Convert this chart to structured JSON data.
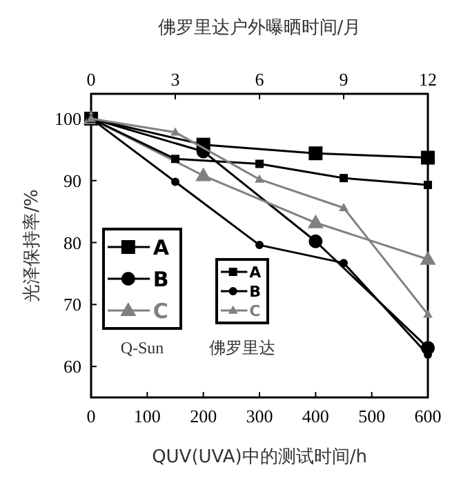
{
  "chart_data": {
    "type": "line",
    "title": "佛罗里达户外曝晒时间/月",
    "xlabel": "QUV(UVA)中的测试时间/h",
    "ylabel": "光泽保持率/%",
    "xlim": [
      0,
      600
    ],
    "xticks": [
      0,
      100,
      200,
      300,
      400,
      500,
      600
    ],
    "x2lim": [
      0,
      12
    ],
    "x2ticks": [
      0,
      3,
      6,
      9,
      12
    ],
    "ylim": [
      55,
      104
    ],
    "yticks": [
      60,
      70,
      80,
      90,
      100
    ],
    "legend": "bottom left",
    "grid": false,
    "annotations": [
      "Q-Sun",
      "佛罗里达"
    ],
    "series": [
      {
        "name": "A",
        "color": "#000000",
        "marker": "square",
        "x": [
          0,
          200,
          400,
          600
        ],
        "values": [
          100,
          95.8,
          94.4,
          93.7
        ]
      },
      {
        "name": "B",
        "color": "#000000",
        "marker": "circle",
        "x": [
          0,
          200,
          400,
          600
        ],
        "values": [
          100,
          94.7,
          80.2,
          63
        ]
      },
      {
        "name": "C",
        "color": "#808080",
        "marker": "triangle",
        "x": [
          0,
          200,
          400,
          600
        ],
        "values": [
          100,
          90.8,
          83.2,
          77.3
        ]
      },
      {
        "name": "A",
        "color": "#000000",
        "marker": "square",
        "axis": "x2",
        "x": [
          0,
          3,
          6,
          9,
          12
        ],
        "values": [
          100,
          93.5,
          92.7,
          90.4,
          89.3
        ]
      },
      {
        "name": "B",
        "color": "#000000",
        "marker": "circle",
        "axis": "x2",
        "x": [
          0,
          3,
          6,
          9,
          12
        ],
        "values": [
          100,
          89.8,
          79.6,
          76.7,
          61.9
        ]
      },
      {
        "name": "C",
        "color": "#808080",
        "marker": "triangle",
        "axis": "x2",
        "x": [
          0,
          3,
          6,
          9,
          12
        ],
        "values": [
          100,
          97.8,
          90.2,
          85.6,
          68.4
        ]
      }
    ]
  }
}
